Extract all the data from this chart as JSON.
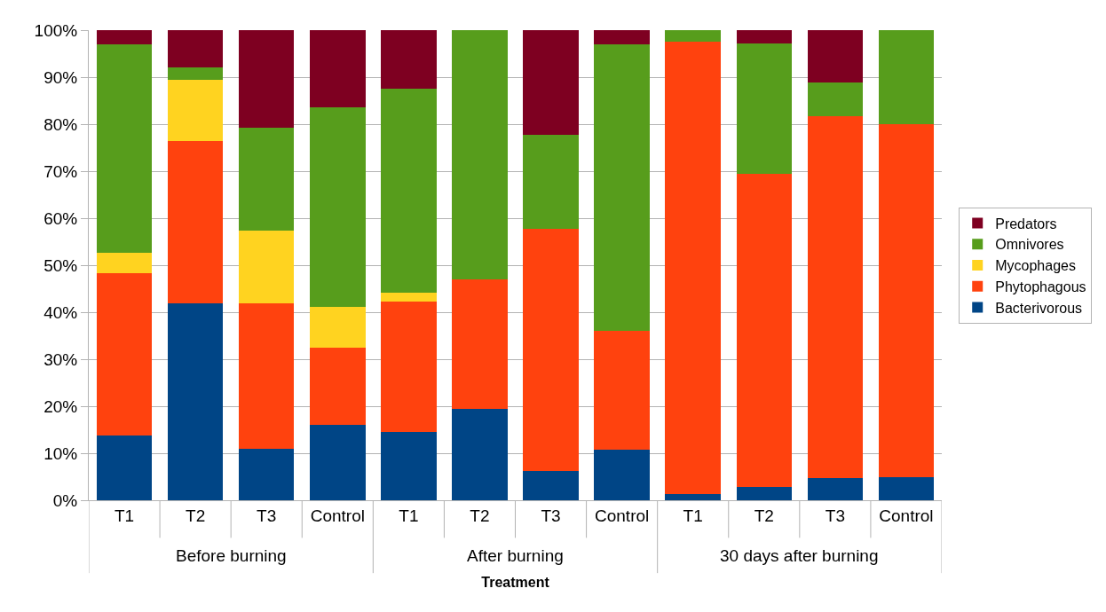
{
  "chart_data": {
    "type": "bar",
    "stacked": true,
    "xlabel": "Treatment",
    "categories": [
      "T1",
      "T2",
      "T3",
      "Control",
      "T1",
      "T2",
      "T3",
      "Control",
      "T1",
      "T2",
      "T3",
      "Control"
    ],
    "annotations": [
      "Before burning",
      "After burning",
      "30 days after burning"
    ],
    "series": [
      {
        "name": "Bacterivorous",
        "color": "#004586",
        "values": [
          13.8,
          41.9,
          11,
          16,
          14.6,
          19.5,
          6.2,
          10.8,
          1.4,
          2.8,
          4.7,
          5
        ]
      },
      {
        "name": "Phytophagous",
        "color": "#ff420e",
        "values": [
          34.5,
          34.6,
          30.9,
          16.4,
          27.6,
          27.4,
          51.6,
          25.2,
          96.2,
          66.6,
          77,
          75
        ]
      },
      {
        "name": "Mycophages",
        "color": "#ffd320",
        "values": [
          4.3,
          12.9,
          15.5,
          8.8,
          1.9,
          0,
          0,
          0,
          0,
          0,
          0,
          0
        ]
      },
      {
        "name": "Omnivores",
        "color": "#579d1c",
        "values": [
          44.4,
          2.7,
          21.9,
          42.3,
          43.4,
          53.1,
          20,
          60.9,
          2.4,
          27.7,
          7.2,
          20
        ]
      },
      {
        "name": "Predators",
        "color": "#7e0021",
        "values": [
          3,
          7.9,
          20.7,
          16.5,
          12.5,
          0,
          22.2,
          3.1,
          0,
          2.9,
          11.1,
          0
        ]
      }
    ],
    "ylim": [
      0,
      100
    ],
    "yticks": [
      {
        "value": 0,
        "label": "0%"
      },
      {
        "value": 10,
        "label": "10%"
      },
      {
        "value": 20,
        "label": "20%"
      },
      {
        "value": 30,
        "label": "30%"
      },
      {
        "value": 40,
        "label": "40%"
      },
      {
        "value": 50,
        "label": "50%"
      },
      {
        "value": 60,
        "label": "60%"
      },
      {
        "value": 70,
        "label": "70%"
      },
      {
        "value": 80,
        "label": "80%"
      },
      {
        "value": 90,
        "label": "90%"
      },
      {
        "value": 100,
        "label": "100%"
      }
    ],
    "grid": "y",
    "legend": "right"
  }
}
